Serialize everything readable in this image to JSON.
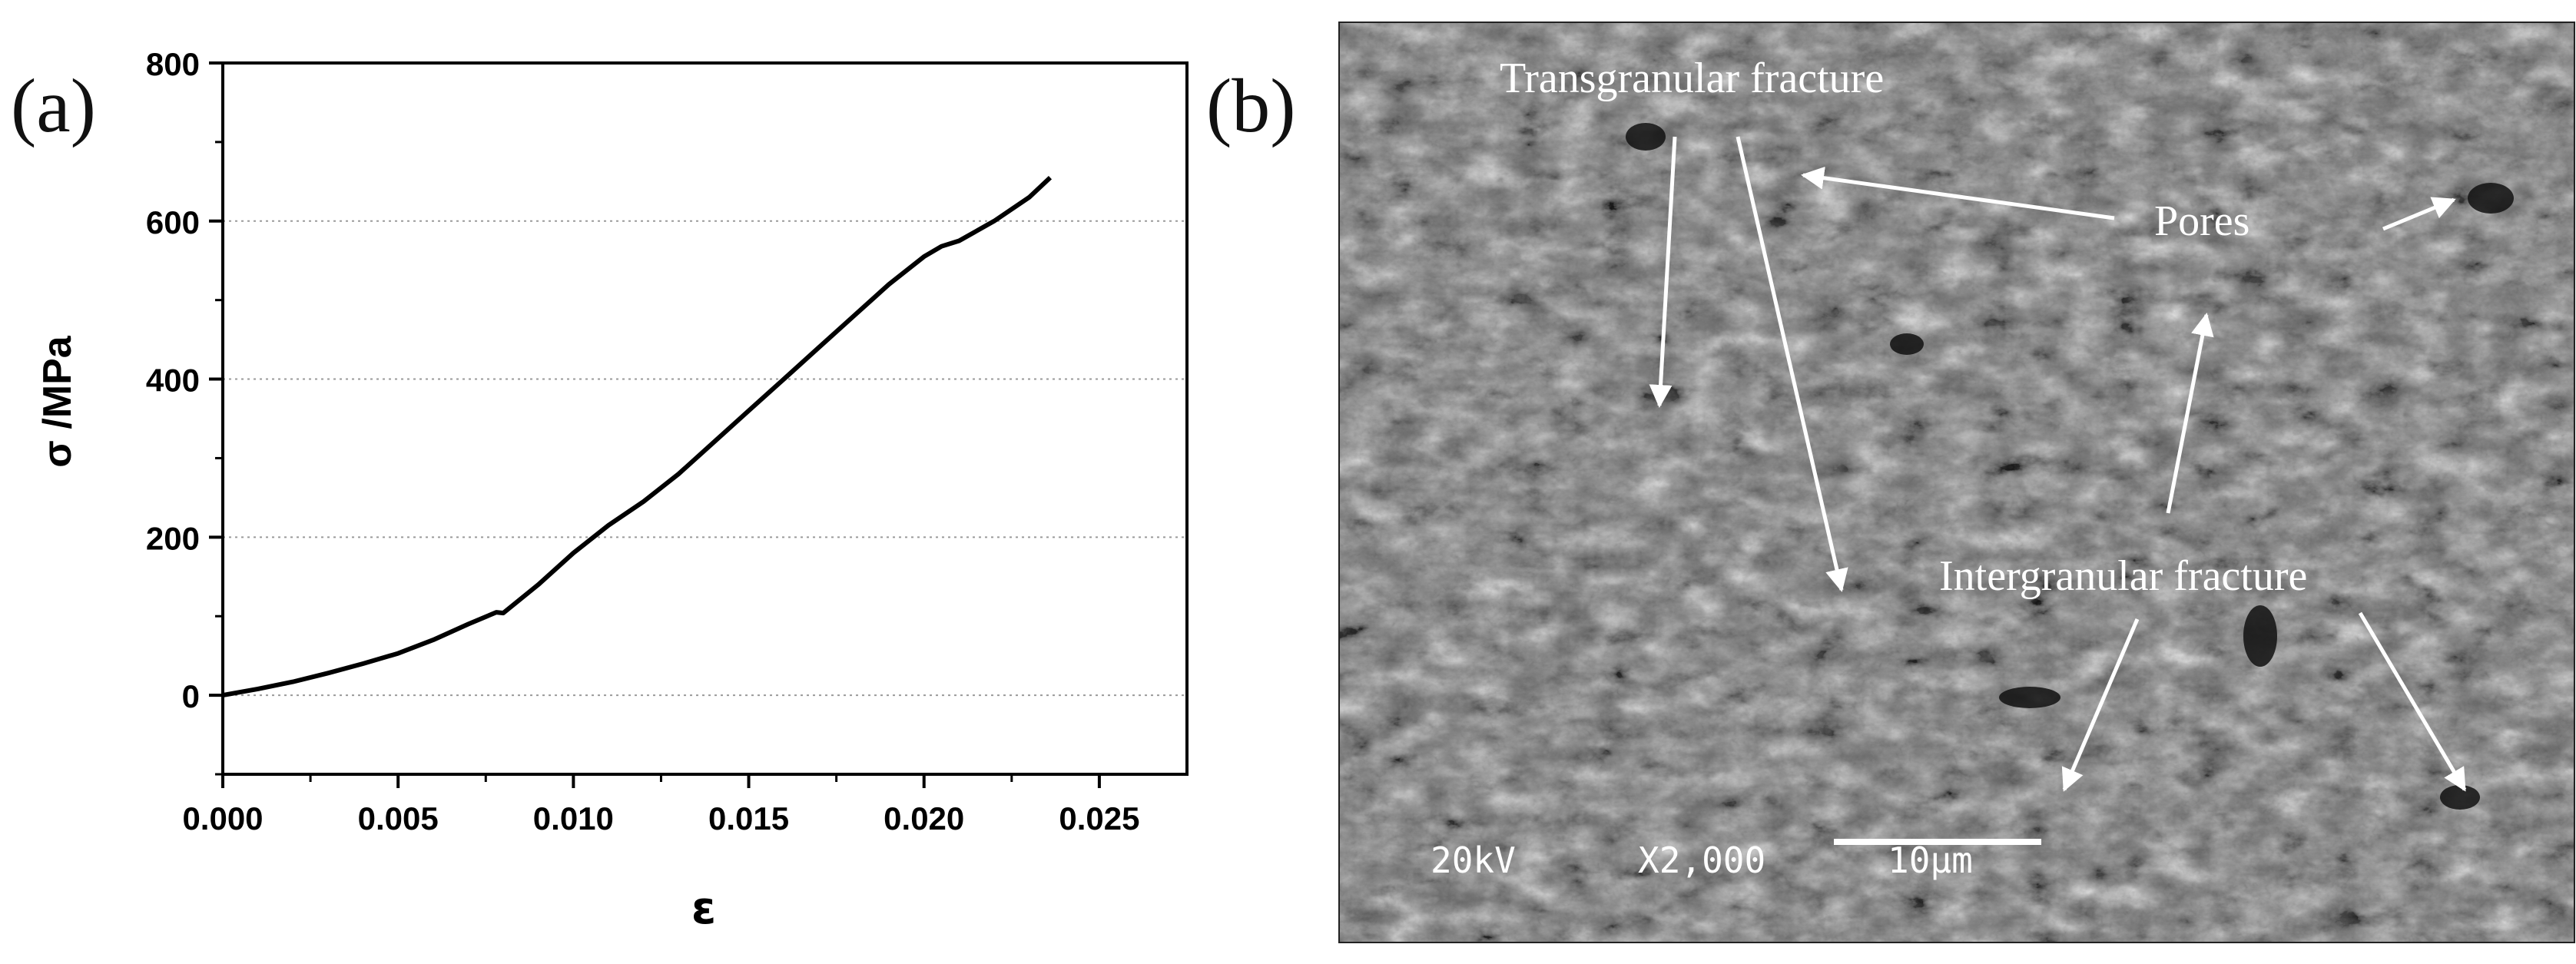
{
  "figure": {
    "panel_a_label": "(a)",
    "panel_b_label": "(b)"
  },
  "chart_data": {
    "type": "line",
    "title": "",
    "xlabel": "ε",
    "ylabel": "σ /MPa",
    "xlim": [
      0.0,
      0.0275
    ],
    "ylim": [
      -100,
      800
    ],
    "xticks": [
      "0.000",
      "0.005",
      "0.010",
      "0.015",
      "0.020",
      "0.025"
    ],
    "xtick_values": [
      0.0,
      0.005,
      0.01,
      0.015,
      0.02,
      0.025
    ],
    "yticks": [
      "0",
      "200",
      "400",
      "600",
      "800"
    ],
    "ytick_values": [
      0,
      200,
      400,
      600,
      800
    ],
    "grid": "horizontal dotted at y ticks",
    "series": [
      {
        "color": "#000000",
        "x": [
          0.0,
          0.001,
          0.002,
          0.003,
          0.004,
          0.005,
          0.006,
          0.007,
          0.0078,
          0.008,
          0.009,
          0.01,
          0.011,
          0.012,
          0.013,
          0.014,
          0.015,
          0.016,
          0.017,
          0.018,
          0.019,
          0.02,
          0.0205,
          0.021,
          0.022,
          0.023,
          0.0236
        ],
        "y": [
          0,
          8,
          17,
          28,
          40,
          53,
          70,
          90,
          105,
          104,
          140,
          180,
          215,
          245,
          280,
          320,
          360,
          400,
          440,
          480,
          520,
          555,
          568,
          575,
          600,
          630,
          655
        ]
      }
    ]
  },
  "sem_image": {
    "annotations": {
      "transgranular": "Transgranular fracture",
      "pores": "Pores",
      "intergranular": "Intergranular fracture"
    },
    "scale_bar": {
      "voltage": "20kV",
      "magnification": "X2,000",
      "length_label": "10μm"
    }
  }
}
